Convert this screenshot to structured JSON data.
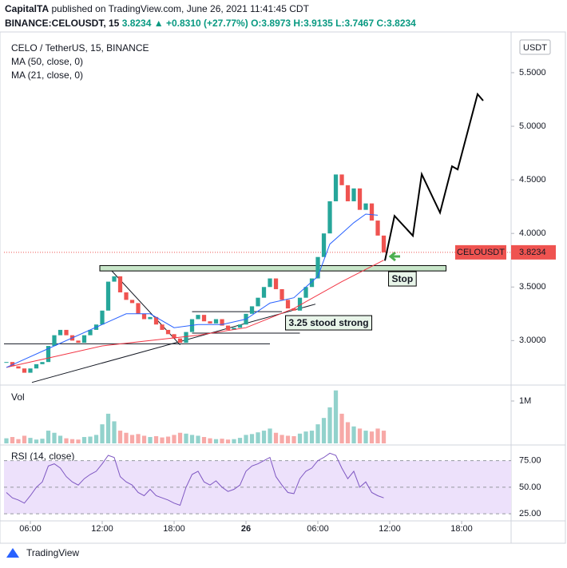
{
  "header": {
    "publisher": "CapitalTA",
    "published_text": "published on TradingView.com, June 26, 2021 11:41:45 CDT",
    "symbol": "BINANCE:CELOUSDT, 15",
    "last": "3.8234",
    "change": "▲ +0.8310 (+27.77%)",
    "ohlc": "O:3.8973 H:3.9135 L:3.7467 C:3.8234"
  },
  "footer": "TradingView",
  "chart_data": [
    {
      "type": "candlestick",
      "title": "CELO / TetherUS, 15, BINANCE",
      "currency": "USDT",
      "x": [
        4,
        4.5,
        5,
        5.5,
        6,
        6.5,
        7,
        7.5,
        8,
        8.5,
        9,
        9.5,
        10,
        10.5,
        11,
        11.5,
        12,
        12.5,
        13,
        13.5,
        14,
        14.5,
        15,
        15.5,
        16,
        16.5,
        17,
        17.5,
        18,
        18.5,
        19,
        19.5,
        20,
        20.5,
        21,
        21.5,
        22,
        22.5,
        23,
        23.5,
        24,
        24.5,
        25,
        25.5,
        26,
        26.5,
        27,
        27.5,
        28,
        28.5,
        29,
        29.5,
        30,
        30.5,
        31,
        31.5,
        32,
        32.5,
        33,
        33.5,
        34,
        34.5,
        35,
        35.5
      ],
      "values": [
        2.8,
        2.76,
        2.74,
        2.7,
        2.74,
        2.78,
        2.8,
        2.95,
        3.05,
        3.1,
        3.05,
        3.0,
        2.98,
        3.05,
        3.1,
        3.15,
        3.28,
        3.55,
        3.6,
        3.45,
        3.38,
        3.35,
        3.25,
        3.2,
        3.22,
        3.15,
        3.1,
        3.06,
        3.02,
        2.98,
        3.08,
        3.2,
        3.24,
        3.18,
        3.16,
        3.2,
        3.14,
        3.1,
        3.12,
        3.15,
        3.25,
        3.32,
        3.4,
        3.5,
        3.58,
        3.48,
        3.38,
        3.3,
        3.28,
        3.4,
        3.5,
        3.58,
        3.78,
        4.0,
        4.3,
        4.55,
        4.45,
        4.3,
        4.42,
        4.22,
        4.28,
        4.12,
        3.98,
        3.8234
      ],
      "up_color": "#26a69a",
      "down_color": "#ef5350",
      "ma": [
        {
          "name": "MA (50, close, 0)",
          "color": "#f23645",
          "x": [
            4,
            8,
            12,
            16,
            20,
            24,
            28,
            32,
            35.5
          ],
          "values": [
            2.75,
            2.85,
            2.95,
            3.0,
            3.05,
            3.12,
            3.3,
            3.55,
            3.75
          ]
        },
        {
          "name": "MA (21, close, 0)",
          "color": "#2962ff",
          "x": [
            4,
            8,
            12,
            14,
            16,
            18,
            20,
            22,
            24,
            26,
            28,
            30,
            31,
            32,
            33,
            34,
            35
          ],
          "values": [
            2.75,
            2.95,
            3.15,
            3.25,
            3.25,
            3.12,
            3.15,
            3.15,
            3.2,
            3.35,
            3.4,
            3.6,
            3.9,
            4.0,
            4.1,
            4.18,
            4.17
          ]
        }
      ],
      "projection": {
        "color": "#000000",
        "x": [
          35.6,
          36.4,
          37.93,
          38.67,
          40.2,
          41.2,
          41.67,
          43.33,
          43.8
        ],
        "values": [
          3.746,
          4.164,
          3.978,
          4.552,
          4.194,
          4.627,
          4.597,
          5.299,
          5.239
        ]
      },
      "lines": [
        {
          "x": [
            6.13,
            29.8
          ],
          "values": [
            2.61,
            3.34
          ]
        },
        {
          "x": [
            12.8,
            18.5
          ],
          "values": [
            3.65,
            2.96
          ]
        },
        {
          "x": [
            3.8,
            26
          ],
          "values": [
            2.97,
            2.97
          ]
        },
        {
          "x": [
            19.5,
            27
          ],
          "values": [
            3.27,
            3.27
          ]
        },
        {
          "x": [
            19.5,
            28.5
          ],
          "values": [
            3.07,
            3.07
          ]
        }
      ],
      "zone": {
        "x": [
          11.8,
          40.7
        ],
        "values": [
          3.65,
          3.7
        ],
        "color": "#c8e6c9"
      },
      "annotations": [
        {
          "text": "Stop",
          "x": 35.9,
          "y": 3.57
        },
        {
          "text": "3.25 stood strong",
          "x": 27.3,
          "y": 3.16
        }
      ],
      "last_price": {
        "value": 3.8234,
        "label": "3.8234"
      },
      "last_name": "CELOUSDT",
      "xlim": [
        3.8,
        46.13
      ],
      "ylim": [
        2.6,
        5.88
      ],
      "xticks": [
        {
          "value": 6,
          "label": "06:00"
        },
        {
          "value": 12,
          "label": "12:00"
        },
        {
          "value": 18,
          "label": "18:00"
        },
        {
          "value": 24,
          "label": "26"
        },
        {
          "value": 30,
          "label": "06:00"
        },
        {
          "value": 36,
          "label": "12:00"
        },
        {
          "value": 42,
          "label": "18:00"
        }
      ],
      "yticks": [
        {
          "value": 3,
          "label": "3.0000"
        },
        {
          "value": 3.5,
          "label": "3.5000"
        },
        {
          "value": 4,
          "label": "4.0000"
        },
        {
          "value": 4.5,
          "label": "4.5000"
        },
        {
          "value": 5,
          "label": "5.0000"
        },
        {
          "value": 5.5,
          "label": "5.5000"
        }
      ]
    },
    {
      "type": "bar",
      "title": "Vol",
      "values": [
        120000,
        150000,
        100000,
        180000,
        130000,
        90000,
        110000,
        300000,
        250000,
        180000,
        120000,
        100000,
        90000,
        150000,
        160000,
        200000,
        450000,
        700000,
        520000,
        300000,
        250000,
        200000,
        220000,
        180000,
        150000,
        170000,
        140000,
        160000,
        200000,
        250000,
        230000,
        200000,
        180000,
        150000,
        120000,
        100000,
        110000,
        90000,
        100000,
        130000,
        200000,
        220000,
        260000,
        300000,
        350000,
        250000,
        200000,
        180000,
        170000,
        230000,
        280000,
        300000,
        450000,
        600000,
        850000,
        1250000,
        700000,
        500000,
        400000,
        350000,
        300000,
        280000,
        350000,
        300000
      ],
      "ylim": [
        0,
        1320000
      ],
      "yticks": [
        {
          "value": 1000000,
          "label": "1M"
        }
      ]
    },
    {
      "type": "line",
      "title": "RSI (14, close)",
      "color": "#7e57c2",
      "band_color": "#ede1fb",
      "values": [
        45,
        40,
        38,
        35,
        42,
        50,
        55,
        70,
        72,
        68,
        60,
        55,
        52,
        58,
        62,
        65,
        72,
        80,
        78,
        60,
        55,
        52,
        45,
        42,
        48,
        42,
        40,
        38,
        35,
        33,
        50,
        62,
        65,
        55,
        52,
        56,
        50,
        46,
        48,
        52,
        65,
        70,
        72,
        75,
        78,
        60,
        52,
        45,
        44,
        58,
        65,
        68,
        75,
        78,
        82,
        80,
        68,
        58,
        65,
        50,
        55,
        45,
        42,
        40
      ],
      "ylim": [
        19.85,
        87.5
      ],
      "yticks": [
        {
          "value": 25,
          "label": "25.00"
        },
        {
          "value": 50,
          "label": "50.00"
        },
        {
          "value": 75,
          "label": "75.00"
        }
      ]
    }
  ]
}
